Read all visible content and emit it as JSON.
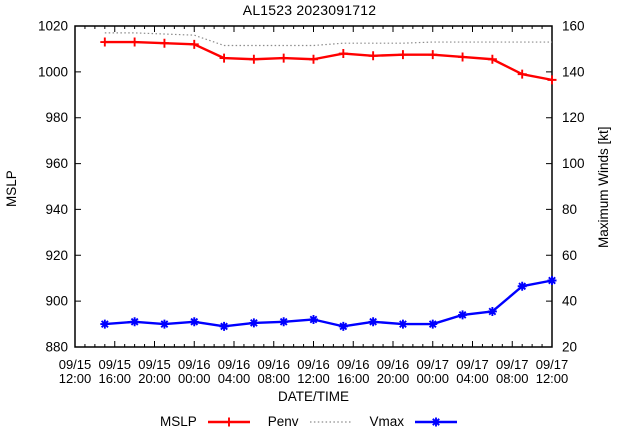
{
  "title": "AL1523 2023091712",
  "colors": {
    "mslp": "#ff0000",
    "penv": "#8c8c8c",
    "vmax": "#0000ff",
    "axis": "#000000",
    "background": "#ffffff"
  },
  "chart_data": {
    "type": "line",
    "title": "AL1523 2023091712",
    "xlabel": "DATE/TIME",
    "ylabel_left": "MSLP",
    "ylabel_right": "Maximum Winds [kt]",
    "grid": false,
    "legend_position": "bottom-center",
    "x_axis": {
      "start_label": "09/15 12:00",
      "end_label": "09/17 12:00",
      "range_hours": [
        0,
        48
      ],
      "major_tick_hours": 4,
      "minor_tick_hours": 1,
      "tick_labels": [
        "09/15 12:00",
        "09/15 16:00",
        "09/15 20:00",
        "09/16 00:00",
        "09/16 04:00",
        "09/16 08:00",
        "09/16 12:00",
        "09/16 16:00",
        "09/16 20:00",
        "09/17 00:00",
        "09/17 04:00",
        "09/17 08:00",
        "09/17 12:00"
      ]
    },
    "y_axis_left": {
      "label": "MSLP",
      "lim": [
        880,
        1020
      ],
      "ticks": [
        880,
        900,
        920,
        940,
        960,
        980,
        1000,
        1020
      ]
    },
    "y_axis_right": {
      "label": "Maximum Winds [kt]",
      "lim": [
        20,
        160
      ],
      "ticks": [
        20,
        40,
        60,
        80,
        100,
        120,
        140,
        160
      ]
    },
    "x_hours": [
      3,
      6,
      9,
      12,
      15,
      18,
      21,
      24,
      27,
      30,
      33,
      36,
      39,
      42,
      45,
      48
    ],
    "x_times": [
      "09/15 15:00",
      "09/15 18:00",
      "09/15 21:00",
      "09/16 00:00",
      "09/16 03:00",
      "09/16 06:00",
      "09/16 09:00",
      "09/16 12:00",
      "09/16 15:00",
      "09/16 18:00",
      "09/16 21:00",
      "09/17 00:00",
      "09/17 03:00",
      "09/17 06:00",
      "09/17 09:00",
      "09/17 12:00"
    ],
    "series": [
      {
        "name": "MSLP",
        "axis": "left",
        "color": "#ff0000",
        "style": "solid",
        "marker": "plus",
        "values": [
          1013,
          1013,
          1012.5,
          1012,
          1006,
          1005.5,
          1006,
          1005.5,
          1008,
          1007,
          1007.5,
          1007.5,
          1006.5,
          1005.5,
          999,
          996.5
        ]
      },
      {
        "name": "Penv",
        "axis": "left",
        "color": "#8c8c8c",
        "style": "dotted",
        "marker": "none",
        "values": [
          1017,
          1017,
          1016.5,
          1016,
          1011.5,
          1011.5,
          1011.5,
          1011.5,
          1012.5,
          1012.5,
          1012.5,
          1013,
          1013,
          1013,
          1013,
          1013
        ]
      },
      {
        "name": "Vmax",
        "axis": "right",
        "color": "#0000ff",
        "style": "solid",
        "marker": "asterisk",
        "values": [
          30,
          31,
          30,
          31,
          29,
          30.5,
          31,
          32,
          29,
          31,
          30,
          30,
          34,
          35.5,
          46.5,
          49
        ]
      }
    ]
  }
}
